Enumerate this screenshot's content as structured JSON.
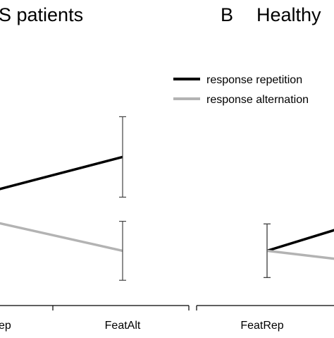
{
  "chart_data": [
    {
      "type": "line",
      "panel_label": "",
      "title": "S patients",
      "categories": [
        "FeatRep",
        "FeatAlt"
      ],
      "visible_tick_labels": [
        "ep",
        "FeatAlt"
      ],
      "xlabel": "",
      "ylabel": "",
      "ylim": [
        0,
        100
      ],
      "grid": false,
      "series": [
        {
          "name": "response repetition",
          "color": "#000000",
          "values": [
            38,
            52
          ],
          "error": [
            null,
            15
          ]
        },
        {
          "name": "response alternation",
          "color": "#b3b3b3",
          "values": [
            29,
            17
          ],
          "error": [
            null,
            11
          ]
        }
      ]
    },
    {
      "type": "line",
      "panel_label": "B",
      "title": "Healthy",
      "categories": [
        "FeatRep",
        "FeatAlt"
      ],
      "visible_tick_labels": [
        "FeatRep"
      ],
      "xlabel": "",
      "ylabel": "",
      "ylim": [
        0,
        100
      ],
      "grid": false,
      "legend": "top-right",
      "series": [
        {
          "name": "response repetition",
          "color": "#000000",
          "values": [
            17,
            30
          ],
          "error": [
            10,
            null
          ]
        },
        {
          "name": "response alternation",
          "color": "#b3b3b3",
          "values": [
            17,
            12
          ],
          "error": [
            10,
            null
          ]
        }
      ]
    }
  ],
  "legend": {
    "entries": [
      {
        "label": "response repetition",
        "color": "#000000"
      },
      {
        "label": "response alternation",
        "color": "#b3b3b3"
      }
    ]
  }
}
